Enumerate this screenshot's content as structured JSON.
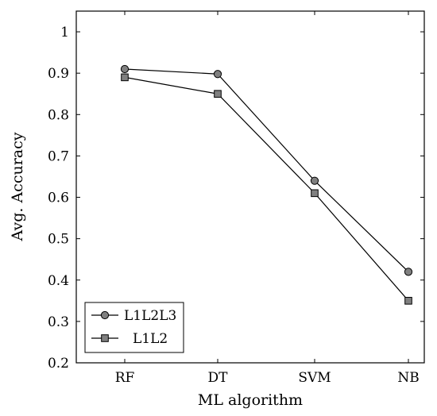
{
  "chart_data": {
    "type": "line",
    "categories": [
      "RF",
      "DT",
      "SVM",
      "NB"
    ],
    "series": [
      {
        "name": "L1L2L3",
        "marker": "circle",
        "values": [
          0.91,
          0.898,
          0.64,
          0.42
        ]
      },
      {
        "name": "L1L2",
        "marker": "square",
        "values": [
          0.89,
          0.85,
          0.61,
          0.35
        ]
      }
    ],
    "title": "",
    "xlabel": "ML algorithm",
    "ylabel": "Avg. Accuracy",
    "ylim": [
      0.2,
      1.05
    ],
    "yticks": [
      0.2,
      0.3,
      0.4,
      0.5,
      0.6,
      0.7,
      0.8,
      0.9,
      1
    ],
    "ytick_labels": [
      "0.2",
      "0.3",
      "0.4",
      "0.5",
      "0.6",
      "0.7",
      "0.8",
      "0.9",
      "1"
    ],
    "grid": false,
    "legend_position": "bottom-left",
    "colors": {
      "line": "#000000",
      "marker_fill": "#808080",
      "marker_stroke": "#000000"
    }
  }
}
